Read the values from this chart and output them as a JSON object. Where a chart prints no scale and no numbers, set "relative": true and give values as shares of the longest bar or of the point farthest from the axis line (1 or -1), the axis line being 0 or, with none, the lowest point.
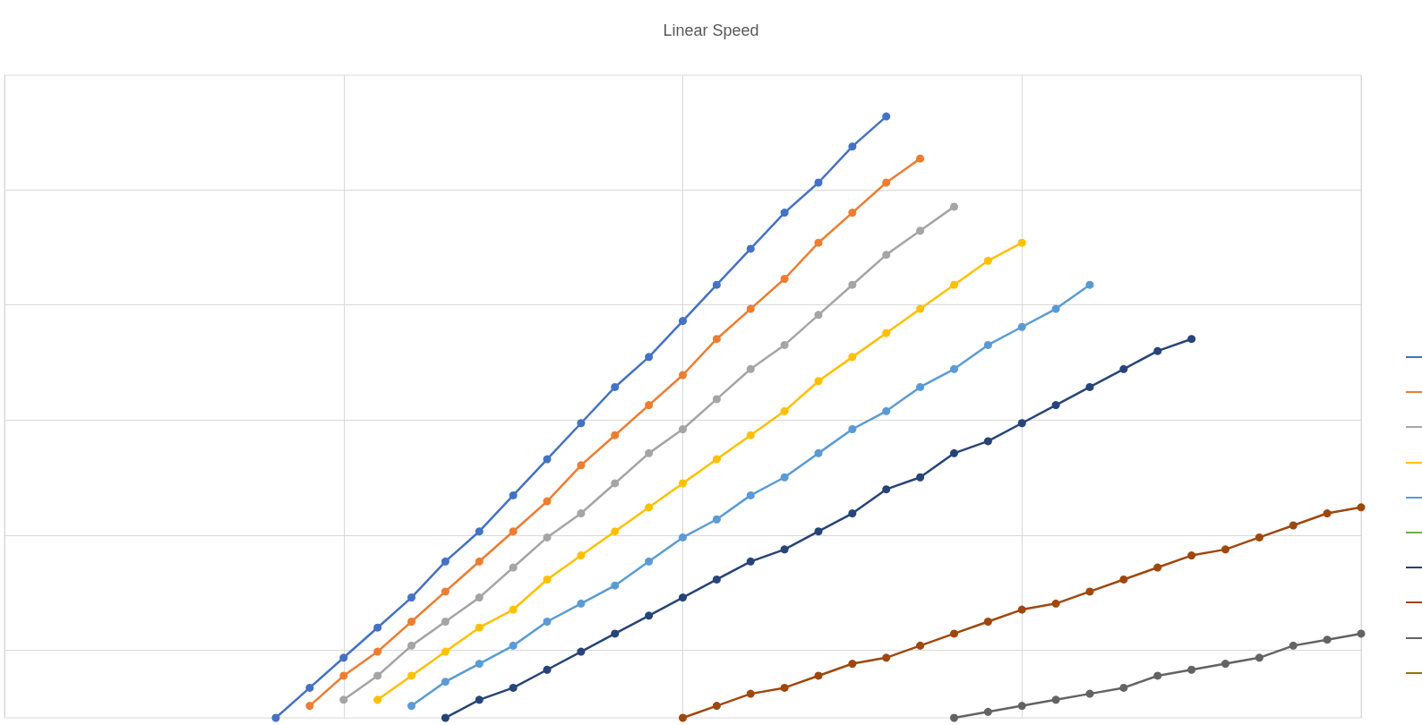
{
  "chart_data": {
    "type": "line",
    "title": "Linear Speed",
    "relative": true,
    "grid": true,
    "marker": "circle",
    "line_style": "solid",
    "categories": [
      null,
      null,
      null,
      null,
      null,
      null,
      null,
      null,
      null,
      null,
      null,
      null,
      null,
      null,
      null,
      null,
      null,
      null,
      null,
      null,
      null,
      null,
      null,
      null,
      null,
      null,
      null,
      null,
      null,
      null,
      null,
      null,
      null,
      null,
      null,
      null,
      null,
      null,
      null,
      null,
      null
    ],
    "series": [
      {
        "color": "#4472c4",
        "values": [
          null,
          null,
          null,
          null,
          null,
          null,
          null,
          null,
          0.0,
          0.05,
          0.1,
          0.15,
          0.2,
          0.26,
          0.31,
          0.37,
          0.43,
          0.49,
          0.55,
          0.6,
          0.66,
          0.72,
          0.78,
          0.84,
          0.89,
          0.95,
          1.0,
          null,
          null,
          null,
          null,
          null,
          null,
          null,
          null,
          null,
          null,
          null,
          null,
          null,
          null
        ]
      },
      {
        "color": "#ed7d31",
        "values": [
          null,
          null,
          null,
          null,
          null,
          null,
          null,
          null,
          null,
          0.02,
          0.07,
          0.11,
          0.16,
          0.21,
          0.26,
          0.31,
          0.36,
          0.42,
          0.47,
          0.52,
          0.57,
          0.63,
          0.68,
          0.73,
          0.79,
          0.84,
          0.89,
          0.93,
          null,
          null,
          null,
          null,
          null,
          null,
          null,
          null,
          null,
          null,
          null,
          null,
          null
        ]
      },
      {
        "color": "#a5a5a5",
        "values": [
          null,
          null,
          null,
          null,
          null,
          null,
          null,
          null,
          null,
          null,
          0.03,
          0.07,
          0.12,
          0.16,
          0.2,
          0.25,
          0.3,
          0.34,
          0.39,
          0.44,
          0.48,
          0.53,
          0.58,
          0.62,
          0.67,
          0.72,
          0.77,
          0.81,
          0.85,
          null,
          null,
          null,
          null,
          null,
          null,
          null,
          null,
          null,
          null,
          null,
          null
        ]
      },
      {
        "color": "#ffc000",
        "values": [
          null,
          null,
          null,
          null,
          null,
          null,
          null,
          null,
          null,
          null,
          null,
          0.03,
          0.07,
          0.11,
          0.15,
          0.18,
          0.23,
          0.27,
          0.31,
          0.35,
          0.39,
          0.43,
          0.47,
          0.51,
          0.56,
          0.6,
          0.64,
          0.68,
          0.72,
          0.76,
          0.79,
          null,
          null,
          null,
          null,
          null,
          null,
          null,
          null,
          null,
          null
        ]
      },
      {
        "color": "#5b9bd5",
        "values": [
          null,
          null,
          null,
          null,
          null,
          null,
          null,
          null,
          null,
          null,
          null,
          null,
          0.02,
          0.06,
          0.09,
          0.12,
          0.16,
          0.19,
          0.22,
          0.26,
          0.3,
          0.33,
          0.37,
          0.4,
          0.44,
          0.48,
          0.51,
          0.55,
          0.58,
          0.62,
          0.65,
          0.68,
          0.72,
          null,
          null,
          null,
          null,
          null,
          null,
          null,
          null
        ]
      },
      {
        "color": "#70ad47",
        "values": [
          null,
          null,
          null,
          null,
          null,
          null,
          null,
          null,
          null,
          null,
          null,
          null,
          null,
          null,
          null,
          null,
          null,
          null,
          null,
          null,
          null,
          null,
          null,
          null,
          null,
          null,
          null,
          null,
          null,
          null,
          null,
          null,
          null,
          null,
          null,
          null,
          null,
          null,
          null,
          null,
          null
        ]
      },
      {
        "color": "#264478",
        "values": [
          null,
          null,
          null,
          null,
          null,
          null,
          null,
          null,
          null,
          null,
          null,
          null,
          null,
          0.0,
          0.03,
          0.05,
          0.08,
          0.11,
          0.14,
          0.17,
          0.2,
          0.23,
          0.26,
          0.28,
          0.31,
          0.34,
          0.38,
          0.4,
          0.44,
          0.46,
          0.49,
          0.52,
          0.55,
          0.58,
          0.61,
          0.63,
          null,
          null,
          null,
          null,
          null
        ]
      },
      {
        "color": "#9e480e",
        "values": [
          null,
          null,
          null,
          null,
          null,
          null,
          null,
          null,
          null,
          null,
          null,
          null,
          null,
          null,
          null,
          null,
          null,
          null,
          null,
          null,
          0.0,
          0.02,
          0.04,
          0.05,
          0.07,
          0.09,
          0.1,
          0.12,
          0.14,
          0.16,
          0.18,
          0.19,
          0.21,
          0.23,
          0.25,
          0.27,
          0.28,
          0.3,
          0.32,
          0.34,
          0.35
        ]
      },
      {
        "color": "#636363",
        "values": [
          null,
          null,
          null,
          null,
          null,
          null,
          null,
          null,
          null,
          null,
          null,
          null,
          null,
          null,
          null,
          null,
          null,
          null,
          null,
          null,
          null,
          null,
          null,
          null,
          null,
          null,
          null,
          null,
          0.0,
          0.01,
          0.02,
          0.03,
          0.04,
          0.05,
          0.07,
          0.08,
          0.09,
          0.1,
          0.12,
          0.13,
          0.14
        ]
      },
      {
        "color": "#997300",
        "values": [
          null,
          null,
          null,
          null,
          null,
          null,
          null,
          null,
          null,
          null,
          null,
          null,
          null,
          null,
          null,
          null,
          null,
          null,
          null,
          null,
          null,
          null,
          null,
          null,
          null,
          null,
          null,
          null,
          null,
          null,
          null,
          null,
          null,
          null,
          null,
          null,
          null,
          null,
          null,
          null,
          null
        ]
      }
    ]
  }
}
